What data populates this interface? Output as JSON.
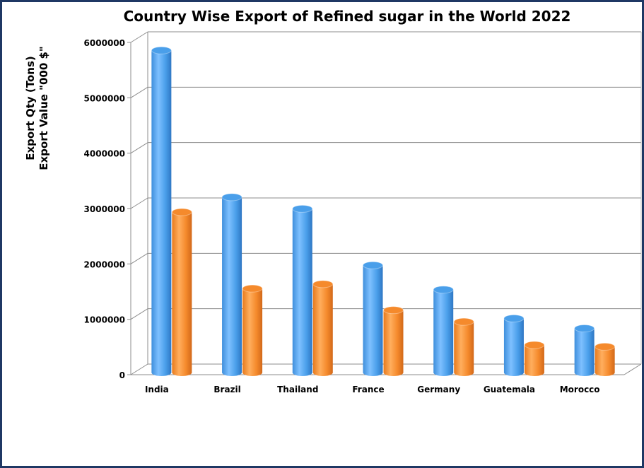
{
  "chart_data": {
    "type": "bar",
    "title": "Country Wise Export of Refined sugar in the World 2022",
    "ylabel_lines": [
      "Export Qty (Tons)",
      "Export Value \"000 $\""
    ],
    "xlabel": "",
    "categories": [
      "India",
      "Brazil",
      "Thailand",
      "France",
      "Germany",
      "Guatemala",
      "Morocco"
    ],
    "series": [
      {
        "color": "#4a9fea",
        "values": [
          5760000,
          3110000,
          2900000,
          1880000,
          1440000,
          920000,
          740000
        ]
      },
      {
        "color": "#f58a2c",
        "values": [
          2840000,
          1460000,
          1540000,
          1070000,
          860000,
          440000,
          410000
        ]
      }
    ],
    "ylim": [
      0,
      6000000
    ],
    "yticks": [
      0,
      1000000,
      2000000,
      3000000,
      4000000,
      5000000,
      6000000
    ],
    "ytick_labels": [
      "0",
      "1000000",
      "2000000",
      "3000000",
      "4000000",
      "5000000",
      "6000000"
    ],
    "grid": true,
    "style": "3d-cylinder",
    "frame_color": "#1f3864"
  }
}
